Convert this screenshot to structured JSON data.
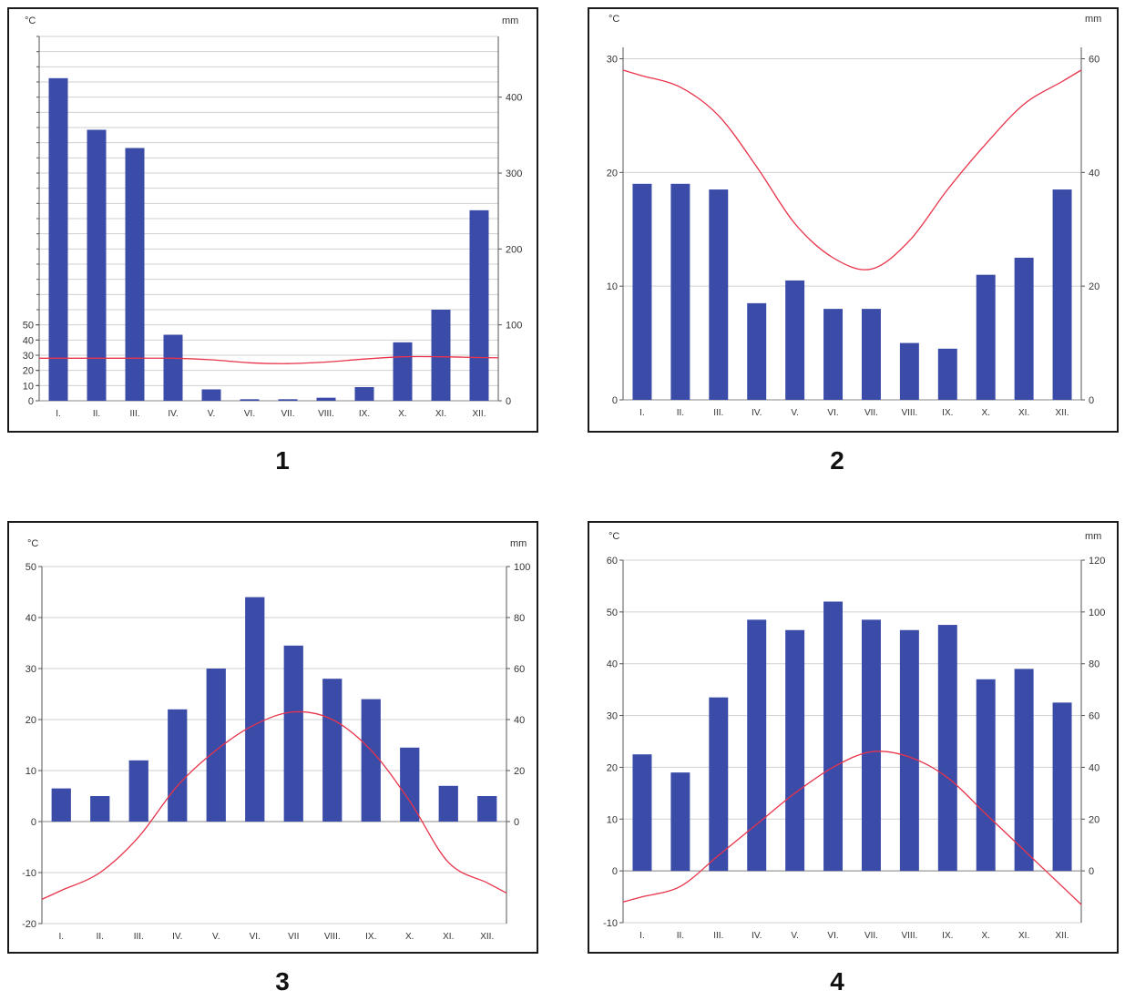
{
  "colors": {
    "bar": "#3b4ba8",
    "line": "#e8334a",
    "grid": "#d0d0d0",
    "axis": "#555555"
  },
  "chart_data": [
    {
      "type": "bar",
      "caption": "1",
      "temp_unit": "°C",
      "precip_unit": "mm",
      "categories": [
        "I.",
        "II.",
        "III.",
        "IV.",
        "V.",
        "VI.",
        "VII.",
        "VIII.",
        "IX.",
        "X.",
        "XI.",
        "XII."
      ],
      "series": [
        {
          "kind": "precipitation",
          "values": [
            425,
            357,
            333,
            87,
            15,
            2,
            2,
            4,
            18,
            77,
            120,
            251
          ]
        },
        {
          "kind": "temperature",
          "values": [
            28,
            28,
            28,
            28,
            27,
            25,
            24.5,
            25.5,
            27.5,
            29,
            29,
            28.5
          ]
        }
      ],
      "temp_ticks": [
        0,
        10,
        20,
        30,
        40,
        50
      ],
      "precip_ticks": [
        0,
        100,
        200,
        300,
        400
      ],
      "temp_range": [
        0,
        240
      ],
      "precip_range": [
        0,
        480
      ],
      "grid": true
    },
    {
      "type": "bar",
      "caption": "2",
      "temp_unit": "°C",
      "precip_unit": "mm",
      "categories": [
        "I.",
        "II.",
        "III.",
        "IV.",
        "V.",
        "VI.",
        "VII.",
        "VIII.",
        "IX.",
        "X.",
        "XI.",
        "XII."
      ],
      "series": [
        {
          "kind": "precipitation",
          "values": [
            38,
            38,
            37,
            17,
            21,
            16,
            16,
            10,
            9,
            22,
            25,
            37
          ]
        },
        {
          "kind": "temperature",
          "values": [
            28.5,
            27.5,
            25,
            20.5,
            15.5,
            12.5,
            11.5,
            14,
            18.5,
            22.5,
            26,
            28
          ]
        }
      ],
      "temp_ticks": [
        0,
        10,
        20,
        30
      ],
      "precip_ticks": [
        0,
        20,
        40,
        60
      ],
      "temp_range": [
        0,
        31
      ],
      "precip_range": [
        0,
        62
      ],
      "grid": true
    },
    {
      "type": "bar",
      "caption": "3",
      "temp_unit": "°C",
      "precip_unit": "mm",
      "categories": [
        "I.",
        "II.",
        "III.",
        "IV.",
        "V.",
        "VI.",
        "VII",
        "VIII.",
        "IX.",
        "X.",
        "XI.",
        "XII."
      ],
      "series": [
        {
          "kind": "precipitation",
          "values": [
            13,
            10,
            24,
            44,
            60,
            88,
            69,
            56,
            48,
            29,
            14,
            10
          ]
        },
        {
          "kind": "temperature",
          "values": [
            -13.5,
            -10,
            -3,
            7,
            14,
            19,
            21.5,
            20,
            14,
            4,
            -8,
            -12
          ]
        }
      ],
      "temp_ticks": [
        -20,
        -10,
        0,
        10,
        20,
        30,
        40,
        50
      ],
      "precip_ticks": [
        0,
        20,
        40,
        60,
        80,
        100
      ],
      "temp_range": [
        -20,
        50
      ],
      "precip_range": [
        -40,
        100
      ],
      "grid": true
    },
    {
      "type": "bar",
      "caption": "4",
      "temp_unit": "°C",
      "precip_unit": "mm",
      "categories": [
        "I.",
        "II.",
        "III.",
        "IV.",
        "V.",
        "VI.",
        "VII.",
        "VIII.",
        "IX.",
        "X.",
        "XI.",
        "XII."
      ],
      "series": [
        {
          "kind": "precipitation",
          "values": [
            45,
            38,
            67,
            97,
            93,
            104,
            97,
            93,
            95,
            74,
            78,
            65
          ]
        },
        {
          "kind": "temperature",
          "values": [
            -5,
            -3,
            3,
            9,
            15,
            20,
            23,
            22,
            18,
            11,
            4,
            -3
          ]
        }
      ],
      "temp_ticks": [
        -10,
        0,
        10,
        20,
        30,
        40,
        50,
        60
      ],
      "precip_ticks": [
        0,
        20,
        40,
        60,
        80,
        100,
        120
      ],
      "temp_range": [
        -10,
        60
      ],
      "precip_range": [
        -20,
        120
      ],
      "grid": true
    }
  ]
}
